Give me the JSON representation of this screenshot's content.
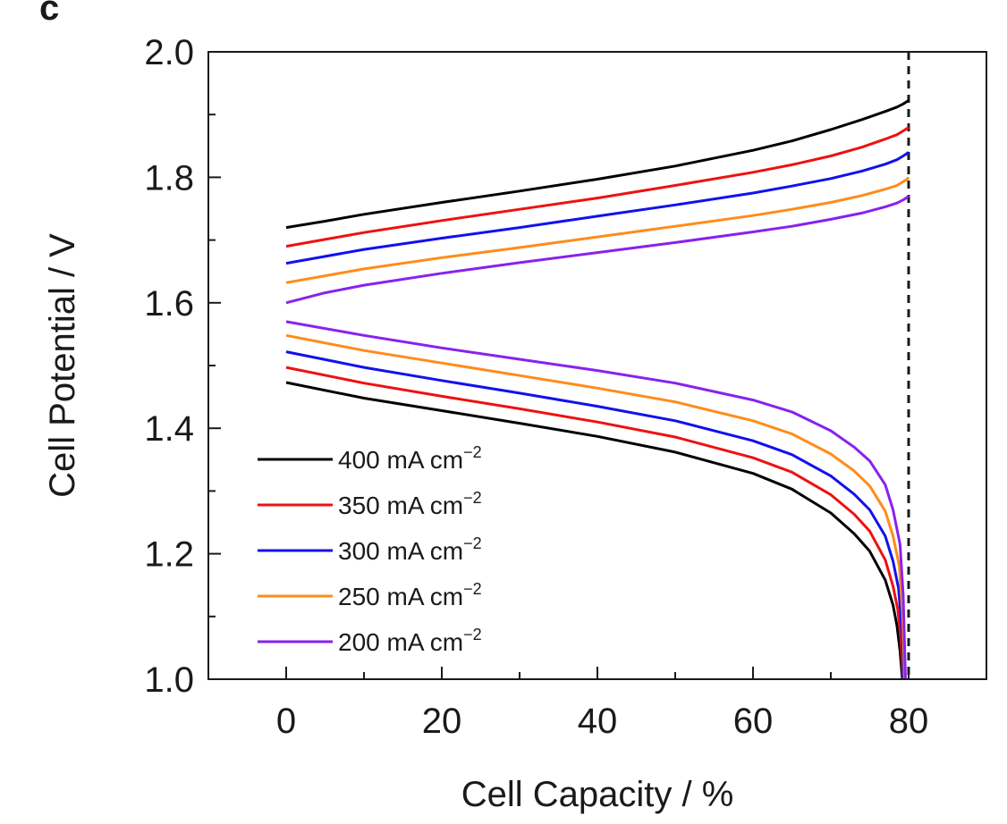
{
  "panel_label": "c",
  "chart_data": {
    "type": "line",
    "title": "",
    "xlabel": "Cell Capacity / %",
    "ylabel": "Cell Potential / V",
    "xlim": [
      -10,
      90
    ],
    "ylim": [
      1.0,
      2.0
    ],
    "x_ticks": [
      0,
      20,
      40,
      60,
      80
    ],
    "x_tick_labels": [
      "0",
      "20",
      "40",
      "60",
      "80"
    ],
    "y_ticks": [
      1.0,
      1.2,
      1.4,
      1.6,
      1.8,
      2.0
    ],
    "y_tick_labels": [
      "1.0",
      "1.2",
      "1.4",
      "1.6",
      "1.8",
      "2.0"
    ],
    "grid": false,
    "legend_position": "bottom-left",
    "reference_line": {
      "x": 80,
      "style": "dashed"
    },
    "x": [
      0,
      5,
      10,
      20,
      30,
      40,
      50,
      60,
      65,
      70,
      74,
      77,
      78.5,
      79.3,
      79.8,
      80
    ],
    "series": [
      {
        "name": "400 mA cm",
        "name_sup": "−2",
        "color": "#000000",
        "charge": [
          1.72,
          1.73,
          1.741,
          1.76,
          1.778,
          1.797,
          1.818,
          1.843,
          1.858,
          1.876,
          1.892,
          1.905,
          1.912,
          1.917,
          1.921,
          1.923
        ],
        "discharge_x": [
          0,
          10,
          20,
          30,
          40,
          50,
          60,
          65,
          70,
          73,
          75,
          77,
          78,
          78.5,
          78.9,
          79.2
        ],
        "discharge": [
          1.473,
          1.448,
          1.428,
          1.408,
          1.387,
          1.362,
          1.328,
          1.303,
          1.265,
          1.232,
          1.204,
          1.158,
          1.118,
          1.085,
          1.045,
          1.0
        ]
      },
      {
        "name": "350 mA cm",
        "name_sup": "−2",
        "color": "#ee1111",
        "charge": [
          1.69,
          1.701,
          1.712,
          1.731,
          1.749,
          1.767,
          1.787,
          1.808,
          1.82,
          1.834,
          1.848,
          1.861,
          1.868,
          1.874,
          1.878,
          1.88
        ],
        "discharge_x": [
          0,
          10,
          20,
          30,
          40,
          50,
          60,
          65,
          70,
          73,
          75,
          77,
          78,
          78.6,
          79.0,
          79.3
        ],
        "discharge": [
          1.497,
          1.472,
          1.451,
          1.431,
          1.41,
          1.386,
          1.353,
          1.33,
          1.294,
          1.263,
          1.236,
          1.19,
          1.148,
          1.112,
          1.065,
          1.0
        ]
      },
      {
        "name": "300 mA cm",
        "name_sup": "−2",
        "color": "#1111ee",
        "charge": [
          1.663,
          1.674,
          1.685,
          1.703,
          1.72,
          1.738,
          1.756,
          1.775,
          1.786,
          1.798,
          1.81,
          1.821,
          1.828,
          1.834,
          1.838,
          1.84
        ],
        "discharge_x": [
          0,
          10,
          20,
          30,
          40,
          50,
          60,
          65,
          70,
          73,
          75,
          77,
          78,
          78.7,
          79.1,
          79.4
        ],
        "discharge": [
          1.522,
          1.497,
          1.476,
          1.456,
          1.435,
          1.412,
          1.38,
          1.358,
          1.324,
          1.295,
          1.27,
          1.228,
          1.188,
          1.145,
          1.085,
          1.0
        ]
      },
      {
        "name": "250 mA cm",
        "name_sup": "−2",
        "color": "#ff8c1a",
        "charge": [
          1.632,
          1.643,
          1.654,
          1.672,
          1.688,
          1.705,
          1.722,
          1.739,
          1.749,
          1.76,
          1.771,
          1.781,
          1.787,
          1.793,
          1.797,
          1.8
        ],
        "discharge_x": [
          0,
          10,
          20,
          30,
          40,
          50,
          60,
          65,
          70,
          73,
          75,
          77,
          78,
          78.8,
          79.2,
          79.5
        ],
        "discharge": [
          1.548,
          1.524,
          1.504,
          1.484,
          1.464,
          1.442,
          1.412,
          1.391,
          1.359,
          1.332,
          1.308,
          1.268,
          1.228,
          1.18,
          1.11,
          1.0
        ]
      },
      {
        "name": "200 mA cm",
        "name_sup": "−2",
        "color": "#8822ee",
        "charge": [
          1.6,
          1.616,
          1.628,
          1.647,
          1.664,
          1.68,
          1.696,
          1.713,
          1.722,
          1.733,
          1.743,
          1.753,
          1.759,
          1.764,
          1.768,
          1.771
        ],
        "discharge_x": [
          0,
          10,
          20,
          30,
          40,
          50,
          60,
          65,
          70,
          73,
          75,
          77,
          78,
          78.9,
          79.3,
          79.6
        ],
        "discharge": [
          1.57,
          1.548,
          1.528,
          1.51,
          1.492,
          1.472,
          1.445,
          1.426,
          1.396,
          1.37,
          1.348,
          1.31,
          1.27,
          1.215,
          1.135,
          1.0
        ]
      }
    ]
  }
}
